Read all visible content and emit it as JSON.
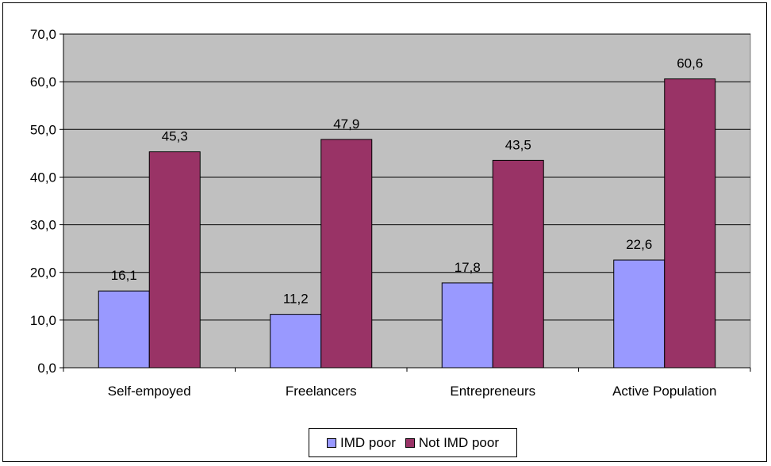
{
  "chart_data": {
    "type": "bar",
    "categories": [
      "Self-empoyed",
      "Freelancers",
      "Entrepreneurs",
      "Active Population"
    ],
    "series": [
      {
        "name": "IMD poor",
        "values": [
          16.1,
          11.2,
          17.8,
          22.6
        ],
        "labels": [
          "16,1",
          "11,2",
          "17,8",
          "22,6"
        ],
        "color": "#9999ff"
      },
      {
        "name": "Not IMD poor",
        "values": [
          45.3,
          47.9,
          43.5,
          60.6
        ],
        "labels": [
          "45,3",
          "47,9",
          "43,5",
          "60,6"
        ],
        "color": "#993366"
      }
    ],
    "ylim": [
      0,
      70
    ],
    "yticks": [
      0,
      10,
      20,
      30,
      40,
      50,
      60,
      70
    ],
    "ytick_labels": [
      "0,0",
      "10,0",
      "20,0",
      "30,0",
      "40,0",
      "50,0",
      "60,0",
      "70,0"
    ],
    "plot_background": "#c0c0c0",
    "grid": true,
    "legend_position": "bottom",
    "title": "",
    "xlabel": "",
    "ylabel": ""
  }
}
